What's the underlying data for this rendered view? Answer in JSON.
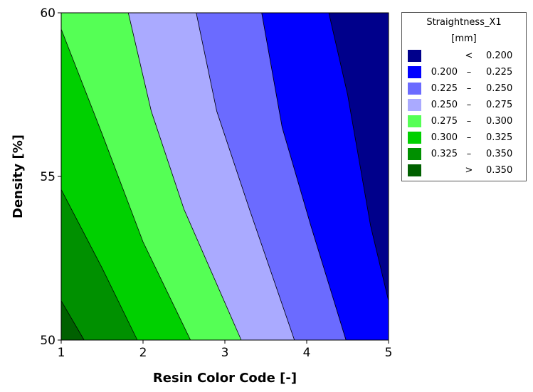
{
  "chart_data": {
    "type": "contour",
    "xlabel": "Resin Color Code [-]",
    "ylabel": "Density [%]",
    "xlim": [
      1,
      5
    ],
    "ylim": [
      50,
      60
    ],
    "xticks": [
      "1",
      "2",
      "3",
      "4",
      "5"
    ],
    "yticks": [
      "50",
      "55",
      "60"
    ],
    "legend": {
      "title": "Straightness_X1",
      "unit": "[mm]",
      "placement": "right",
      "levels": [
        {
          "lo": "",
          "op": "<",
          "hi": "0.200",
          "color": "#00008b"
        },
        {
          "lo": "0.200",
          "op": "–",
          "hi": "0.225",
          "color": "#0000ff"
        },
        {
          "lo": "0.225",
          "op": "–",
          "hi": "0.250",
          "color": "#6b6bff"
        },
        {
          "lo": "0.250",
          "op": "–",
          "hi": "0.275",
          "color": "#aaaaff"
        },
        {
          "lo": "0.275",
          "op": "–",
          "hi": "0.300",
          "color": "#55ff55"
        },
        {
          "lo": "0.300",
          "op": "–",
          "hi": "0.325",
          "color": "#00d000"
        },
        {
          "lo": "0.325",
          "op": "–",
          "hi": "0.350",
          "color": "#009000"
        },
        {
          "lo": "",
          "op": ">",
          "hi": "0.350",
          "color": "#006000"
        }
      ]
    },
    "contour_lines": [
      {
        "level": 0.35,
        "points": [
          [
            1.0,
            51.2
          ],
          [
            1.28,
            50.0
          ]
        ]
      },
      {
        "level": 0.325,
        "points": [
          [
            1.0,
            54.6
          ],
          [
            1.5,
            52.2
          ],
          [
            1.93,
            50.0
          ]
        ]
      },
      {
        "level": 0.3,
        "points": [
          [
            1.0,
            59.5
          ],
          [
            1.5,
            56.3
          ],
          [
            2.0,
            53.0
          ],
          [
            2.58,
            50.0
          ]
        ]
      },
      {
        "level": 0.275,
        "points": [
          [
            1.82,
            60.0
          ],
          [
            2.1,
            57.0
          ],
          [
            2.5,
            54.0
          ],
          [
            3.2,
            50.0
          ]
        ]
      },
      {
        "level": 0.25,
        "points": [
          [
            2.65,
            60.0
          ],
          [
            2.9,
            57.0
          ],
          [
            3.3,
            54.0
          ],
          [
            3.85,
            50.0
          ]
        ]
      },
      {
        "level": 0.225,
        "points": [
          [
            3.45,
            60.0
          ],
          [
            3.7,
            56.5
          ],
          [
            4.05,
            53.5
          ],
          [
            4.48,
            50.0
          ]
        ]
      },
      {
        "level": 0.2,
        "points": [
          [
            4.27,
            60.0
          ],
          [
            4.5,
            57.5
          ],
          [
            4.78,
            53.5
          ],
          [
            5.0,
            51.2
          ]
        ]
      }
    ]
  }
}
